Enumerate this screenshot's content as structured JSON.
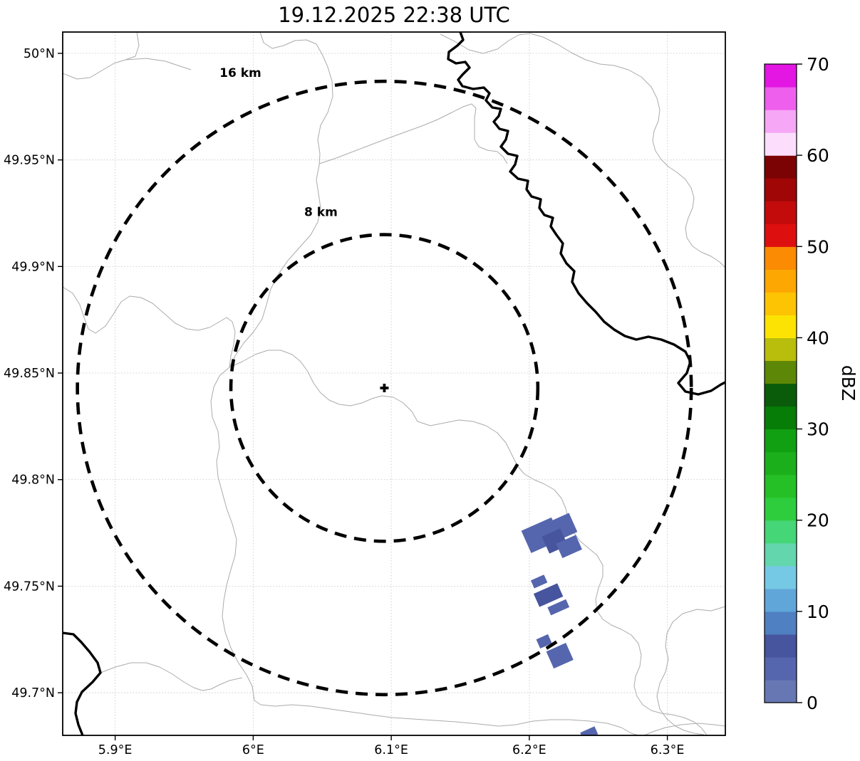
{
  "title": "19.12.2025 22:38 UTC",
  "chart_data": {
    "type": "radar_ppi_map",
    "title": "19.12.2025 22:38 UTC",
    "x_axis": {
      "range": [
        5.862,
        6.342
      ],
      "ticks": [
        {
          "value": 5.9,
          "label": "5.9°E"
        },
        {
          "value": 6.0,
          "label": "6°E"
        },
        {
          "value": 6.1,
          "label": "6.1°E"
        },
        {
          "value": 6.2,
          "label": "6.2°E"
        },
        {
          "value": 6.3,
          "label": "6.3°E"
        }
      ]
    },
    "y_axis": {
      "range": [
        49.68,
        50.01
      ],
      "ticks": [
        {
          "value": 50.0,
          "label": "50°N"
        },
        {
          "value": 49.95,
          "label": "49.95°N"
        },
        {
          "value": 49.9,
          "label": "49.9°N"
        },
        {
          "value": 49.85,
          "label": "49.85°N"
        },
        {
          "value": 49.8,
          "label": "49.8°N"
        },
        {
          "value": 49.75,
          "label": "49.75°N"
        },
        {
          "value": 49.7,
          "label": "49.7°N"
        }
      ]
    },
    "grid": "dotted",
    "radar_site": {
      "lon": 6.095,
      "lat": 49.843,
      "marker": "+"
    },
    "range_rings_km": [
      {
        "radius_km": 8,
        "label": "8 km"
      },
      {
        "radius_km": 16,
        "label": "16 km"
      }
    ],
    "colorbar": {
      "label": "dBZ",
      "min": 0,
      "max": 70,
      "ticks": [
        0,
        10,
        20,
        30,
        40,
        50,
        60,
        70
      ],
      "segment_step_dbz": 2.5,
      "colors_bottom_to_top": [
        "#6777b4",
        "#5566ae",
        "#47549e",
        "#4f80c1",
        "#60a6d9",
        "#76c9e5",
        "#63d6ae",
        "#45d677",
        "#2ecd3d",
        "#25c025",
        "#1bb01b",
        "#11a011",
        "#067d06",
        "#0a5c0a",
        "#5d8706",
        "#b9bd0c",
        "#fce303",
        "#fdc404",
        "#fda703",
        "#fb8b02",
        "#de0f0f",
        "#c30b0b",
        "#a00606",
        "#7c0303",
        "#fcdefc",
        "#f6a7f6",
        "#ee5fee",
        "#e316e3"
      ]
    },
    "echoes": [
      {
        "lon": 6.2087,
        "lat": 49.7739,
        "w_km": 1.72,
        "h_km": 1.27,
        "rot_deg": -24,
        "dbz": 4
      },
      {
        "lon": 6.2237,
        "lat": 49.7776,
        "w_km": 1.27,
        "h_km": 1.08,
        "rot_deg": -24,
        "dbz": 4
      },
      {
        "lon": 6.2185,
        "lat": 49.7712,
        "w_km": 1.05,
        "h_km": 0.97,
        "rot_deg": -24,
        "dbz": 6
      },
      {
        "lon": 6.2288,
        "lat": 49.7686,
        "w_km": 1.12,
        "h_km": 0.82,
        "rot_deg": -24,
        "dbz": 4
      },
      {
        "lon": 6.2071,
        "lat": 49.7522,
        "w_km": 0.75,
        "h_km": 0.45,
        "rot_deg": -24,
        "dbz": 4
      },
      {
        "lon": 6.2138,
        "lat": 49.7458,
        "w_km": 1.35,
        "h_km": 0.75,
        "rot_deg": -24,
        "dbz": 6
      },
      {
        "lon": 6.2211,
        "lat": 49.7401,
        "w_km": 1.05,
        "h_km": 0.45,
        "rot_deg": -24,
        "dbz": 4
      },
      {
        "lon": 6.2107,
        "lat": 49.7241,
        "w_km": 0.67,
        "h_km": 0.52,
        "rot_deg": -24,
        "dbz": 4
      },
      {
        "lon": 6.2221,
        "lat": 49.7174,
        "w_km": 1.12,
        "h_km": 0.97,
        "rot_deg": -24,
        "dbz": 4
      },
      {
        "lon": 6.2433,
        "lat": 49.6809,
        "w_km": 0.82,
        "h_km": 0.45,
        "rot_deg": -24,
        "dbz": 4
      }
    ],
    "map_layers": {
      "border_color": "#000000",
      "admin_color": "#ababab",
      "national_border_paths": [
        "M646,45 L650,56 L642,64 L630,73 L629,83 L640,89 L653,87 L659,95 L649,105 L643,112 L649,121 L664,125 L679,123 L687,131 L682,141 L691,151 L703,153 L700,163 L693,171 L701,181 L713,184 L710,196 L703,206 L713,216 L726,219 L723,231 L716,241 L727,251 L741,254 L739,266 L746,276 L759,280 L757,292 L764,302 L776,306 L773,318 L781,330 L790,342 L787,356 L795,370 L806,381 L803,396 L812,412 L824,426 L836,438 L848,452 L862,463 L877,472 L893,477 L910,473 L928,477 L946,484 L962,494 L969,508 L964,524 L952,538 L962,550 L980,554 L998,549 L1012,540 L1018,537",
        "M88,889 L103,891 L114,902 L126,916 L137,931 L141,945 L130,958 L115,972 L108,986 L106,1002 L110,1018 L116,1033"
      ],
      "admin_boundary_paths": [
        "M88,103 L108,111 L126,109 L143,99 L160,89 L176,84 L190,79 L195,64 L192,45",
        "M176,84 L205,82 L232,86 L256,94 L268,98",
        "M365,45 L370,60 L382,68 L398,64 L414,57 L430,56 L444,62 L452,76 L460,94 L466,114 L467,136 L460,158 L450,176 L446,196 L449,216 L448,232 L444,252 L447,272 L450,292 L446,312 L436,330 L420,348 L404,366 L390,386 L380,406 L374,428 L368,448 L356,466 L342,482 L330,500 L322,516 L308,528 L300,544 L296,564 L298,586 L306,606 L308,628 L304,648 L306,670 L312,692 L318,714 L326,736 L332,758 L330,780 L324,800 L318,822 L314,844 L312,866 L316,888 L324,910 L334,930 L346,948 L354,964 L357,984 L366,990 L386,992 L410,990 L436,992 L464,996 L492,1000 L520,1004 L550,1008 L580,1010 L610,1012 L640,1014 L672,1017 L700,1020 L724,1018 L748,1013 L772,1011 L800,1011 L828,1013 L852,1016 L872,1022 L886,1030 L896,1033",
        "M448,230 L472,222 L498,212 L524,202 L548,193 L570,185 L592,177 L614,168 L634,158 L650,150 L662,146 L668,152 L666,166 L666,182 L666,196 L672,206 L684,211 L698,213 L706,220 L712,230",
        "M322,516 L340,508 L358,498 L376,492 L394,492 L410,498 L422,508 L432,522 L440,538 L450,552 L462,562 L476,568 L492,570 L508,566 L522,560 L536,556 L552,558 L566,566 L578,578 L586,592 L604,598 L624,594 L644,590 L664,592 L682,598 L698,608 L710,622 L718,638 L726,654 L736,666 L750,674 L764,680 L778,688 L788,700 L794,714 L798,730 L804,746 L814,760 L826,770 L838,780 L846,794 L846,810 L840,826 L836,842 L838,858 L846,870 L858,878 L872,884 L886,892 L896,904 L900,920 L898,936 L892,950 L890,964 L894,978 L902,990 L914,998 L928,1002 L944,1004 L960,1008 L974,1014 L984,1022 L990,1030 L992,1033",
        "M1018,852 L998,858 L978,856 L958,862 L944,874 L936,890 L934,908 L938,926 L934,944 L926,960 L922,978 L926,996 L936,1010 L948,1020 L960,1026 L974,1030 L988,1032",
        "M141,945 L162,937 L184,931 L205,931 L224,937 L242,947 L258,958 L272,966 L284,970 L296,968 L308,962 L322,956 L340,952",
        "M88,403 L102,412 L112,428 L118,446 L124,462 L134,468 L148,458 L160,440 L170,424 L182,416 L198,418 L214,426 L230,440 L246,454 L262,462 L278,464 L294,460 L308,452 L318,446 L326,452 L330,466 L328,484 L324,500 L322,516",
        "M618,48 L638,58 L658,70 L678,75 L698,69 L714,57 L728,49 L744,47 L762,52 L782,62 L802,74 L822,84 L842,90 L862,92 L882,98 L900,108 L914,122 L922,138 L926,154 L924,170 L918,184 L916,198 L920,212 L928,224 L938,234 L950,242 L962,252 L970,264 L974,278 L972,292 L966,306 L962,320 L964,334 L972,346 L984,354 L998,360 L1010,368 L1018,376",
        "M904,1033 L916,1028 L934,1022 L956,1018 L980,1016 L1002,1018 L1018,1020"
      ]
    }
  }
}
